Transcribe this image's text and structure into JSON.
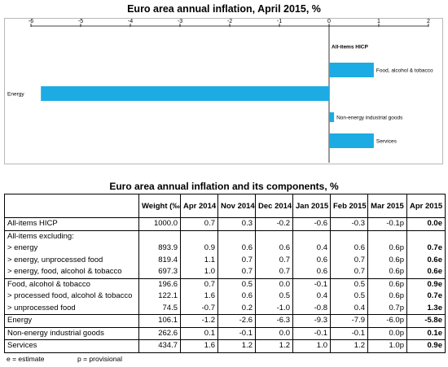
{
  "chart_data": {
    "type": "bar",
    "orientation": "horizontal",
    "title": "Euro area annual inflation, April 2015, %",
    "xlim": [
      -6,
      2
    ],
    "ticks": [
      -6,
      -5,
      -4,
      -3,
      -2,
      -1,
      0,
      1,
      2
    ],
    "tick_labels": [
      "-6",
      "-5",
      "-4",
      "-3",
      "-2",
      "-1",
      "0",
      "1",
      "2"
    ],
    "categories": [
      "All-items HICP",
      "Food, alcohol & tobacco",
      "Energy",
      "Non-energy industrial goods",
      "Services"
    ],
    "values": [
      0.0,
      0.9,
      -5.8,
      0.1,
      0.9
    ],
    "bar_color": "#1cabe2"
  },
  "table": {
    "title": "Euro area annual inflation and its components, %",
    "headers": {
      "weight": "Weight (‰) 2015",
      "periods": [
        "Apr 2014",
        "Nov 2014",
        "Dec 2014",
        "Jan 2015",
        "Feb 2015",
        "Mar 2015",
        "Apr 2015"
      ]
    },
    "rows": [
      {
        "label": "All-items HICP",
        "weight": "1000.0",
        "values": [
          "0.7",
          "0.3",
          "-0.2",
          "-0.6",
          "-0.3",
          "-0.1p",
          "0.0e"
        ]
      },
      {
        "label": "All-items excluding:",
        "weight": "",
        "values": [
          "",
          "",
          "",
          "",
          "",
          "",
          ""
        ]
      },
      {
        "label": "> energy",
        "weight": "893.9",
        "values": [
          "0.9",
          "0.6",
          "0.6",
          "0.4",
          "0.6",
          "0.6p",
          "0.7e"
        ]
      },
      {
        "label": "> energy, unprocessed food",
        "weight": "819.4",
        "values": [
          "1.1",
          "0.7",
          "0.7",
          "0.6",
          "0.7",
          "0.6p",
          "0.6e"
        ]
      },
      {
        "label": "> energy, food, alcohol & tobacco",
        "weight": "697.3",
        "values": [
          "1.0",
          "0.7",
          "0.7",
          "0.6",
          "0.7",
          "0.6p",
          "0.6e"
        ]
      },
      {
        "label": "Food, alcohol & tobacco",
        "weight": "196.6",
        "values": [
          "0.7",
          "0.5",
          "0.0",
          "-0.1",
          "0.5",
          "0.6p",
          "0.9e"
        ]
      },
      {
        "label": "> processed food, alcohol & tobacco",
        "weight": "122.1",
        "values": [
          "1.6",
          "0.6",
          "0.5",
          "0.4",
          "0.5",
          "0.6p",
          "0.7e"
        ]
      },
      {
        "label": "> unprocessed food",
        "weight": "74.5",
        "values": [
          "-0.7",
          "0.2",
          "-1.0",
          "-0.8",
          "0.4",
          "0.7p",
          "1.3e"
        ]
      },
      {
        "label": "Energy",
        "weight": "106.1",
        "values": [
          "-1.2",
          "-2.6",
          "-6.3",
          "-9.3",
          "-7.9",
          "-6.0p",
          "-5.8e"
        ]
      },
      {
        "label": "Non-energy industrial goods",
        "weight": "262.6",
        "values": [
          "0.1",
          "-0.1",
          "0.0",
          "-0.1",
          "-0.1",
          "0.0p",
          "0.1e"
        ]
      },
      {
        "label": "Services",
        "weight": "434.7",
        "values": [
          "1.6",
          "1.2",
          "1.2",
          "1.0",
          "1.2",
          "1.0p",
          "0.9e"
        ]
      }
    ]
  },
  "footnotes": {
    "estimate": "e = estimate",
    "provisional": "p = provisional"
  }
}
